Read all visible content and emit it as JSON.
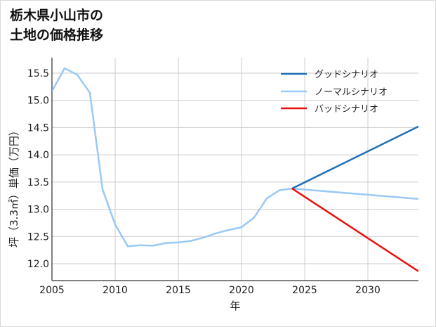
{
  "title": {
    "line1": "栃木県小山市の",
    "line2": "土地の価格推移"
  },
  "colors": {
    "good": "#1f6fb8",
    "normal": "#99c9f5",
    "bad": "#e8110f",
    "grid": "#cccccc"
  },
  "chart_data": {
    "type": "line",
    "title": "栃木県小山市の土地の価格推移",
    "xlabel": "年",
    "ylabel": "坪（3.3㎡）単価（万円）",
    "xlim": [
      2005,
      2034
    ],
    "ylim": [
      11.7,
      15.8
    ],
    "x_ticks": [
      2005,
      2010,
      2015,
      2020,
      2025,
      2030
    ],
    "y_ticks": [
      12.0,
      12.5,
      13.0,
      13.5,
      14.0,
      14.5,
      15.0,
      15.5
    ],
    "grid": true,
    "legend_position": "upper right",
    "series": [
      {
        "name": "グッドシナリオ",
        "color": "#1f6fb8",
        "x": [
          2024,
          2034
        ],
        "values": [
          13.38,
          14.52
        ]
      },
      {
        "name": "ノーマルシナリオ",
        "color": "#99c9f5",
        "x": [
          2005,
          2006,
          2007,
          2008,
          2009,
          2010,
          2011,
          2012,
          2013,
          2014,
          2015,
          2016,
          2017,
          2018,
          2019,
          2020,
          2021,
          2022,
          2023,
          2024,
          2034
        ],
        "values": [
          15.17,
          15.59,
          15.47,
          15.14,
          13.37,
          12.72,
          12.32,
          12.34,
          12.33,
          12.38,
          12.39,
          12.42,
          12.48,
          12.56,
          12.62,
          12.67,
          12.85,
          13.2,
          13.35,
          13.38,
          13.19
        ]
      },
      {
        "name": "バッドシナリオ",
        "color": "#e8110f",
        "x": [
          2024,
          2034
        ],
        "values": [
          13.38,
          11.86
        ]
      }
    ]
  }
}
